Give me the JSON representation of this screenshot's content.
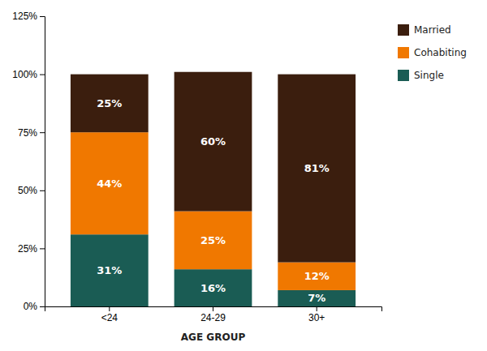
{
  "chart_data": {
    "type": "bar",
    "stacked": true,
    "xlabel": "AGE GROUP",
    "categories": [
      "<24",
      "24-29",
      "30+"
    ],
    "series": [
      {
        "name": "Single",
        "color": "#1a5c54",
        "values": [
          31,
          16,
          7
        ],
        "value_labels": [
          "31%",
          "16%",
          "7%"
        ]
      },
      {
        "name": "Cohabiting",
        "color": "#f07800",
        "values": [
          44,
          25,
          12
        ],
        "value_labels": [
          "44%",
          "25%",
          "12%"
        ]
      },
      {
        "name": "Married",
        "color": "#3b1e0e",
        "values": [
          25,
          60,
          81
        ],
        "value_labels": [
          "25%",
          "60%",
          "81%"
        ]
      }
    ],
    "ylim": [
      0,
      125
    ],
    "yticks": [
      {
        "value": 0,
        "label": "0%"
      },
      {
        "value": 25,
        "label": "25%"
      },
      {
        "value": 50,
        "label": "50%"
      },
      {
        "value": 75,
        "label": "75%"
      },
      {
        "value": 100,
        "label": "100%"
      },
      {
        "value": 125,
        "label": "125%"
      }
    ],
    "data_labels": true,
    "grid": false,
    "legend": "right"
  }
}
